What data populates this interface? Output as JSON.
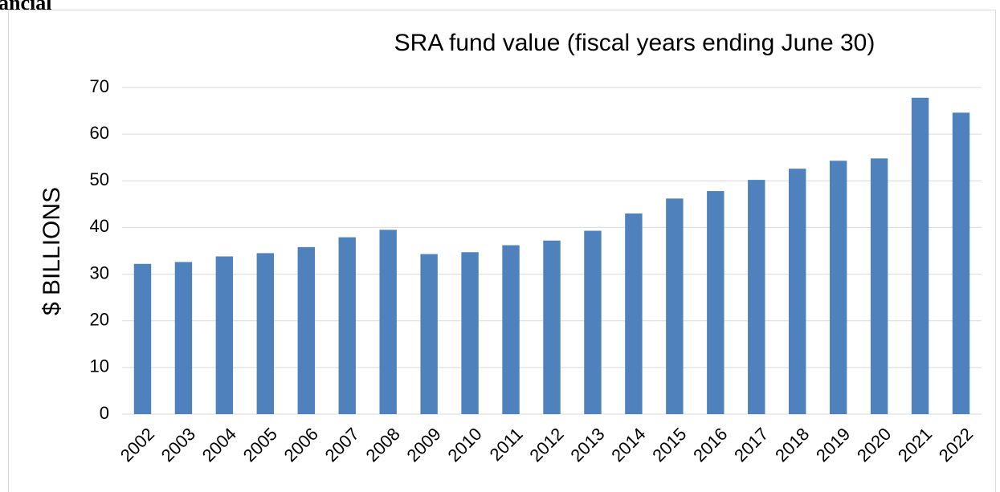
{
  "page_heading": "ancial",
  "chart_data": {
    "type": "bar",
    "title": "SRA fund value (fiscal years ending June 30)",
    "ylabel": "$ BILLIONS",
    "categories": [
      "2002",
      "2003",
      "2004",
      "2005",
      "2006",
      "2007",
      "2008",
      "2009",
      "2010",
      "2011",
      "2012",
      "2013",
      "2014",
      "2015",
      "2016",
      "2017",
      "2018",
      "2019",
      "2020",
      "2021",
      "2022"
    ],
    "values": [
      32.2,
      32.6,
      33.8,
      34.5,
      35.8,
      37.9,
      39.5,
      34.3,
      34.7,
      36.2,
      37.2,
      39.3,
      43.0,
      46.2,
      47.8,
      50.2,
      52.6,
      54.3,
      54.8,
      67.8,
      64.6
    ],
    "color": "#4f81bd",
    "ylim": [
      0,
      70
    ],
    "yticks": [
      0,
      10,
      20,
      30,
      40,
      50,
      60,
      70
    ],
    "grid": true
  }
}
